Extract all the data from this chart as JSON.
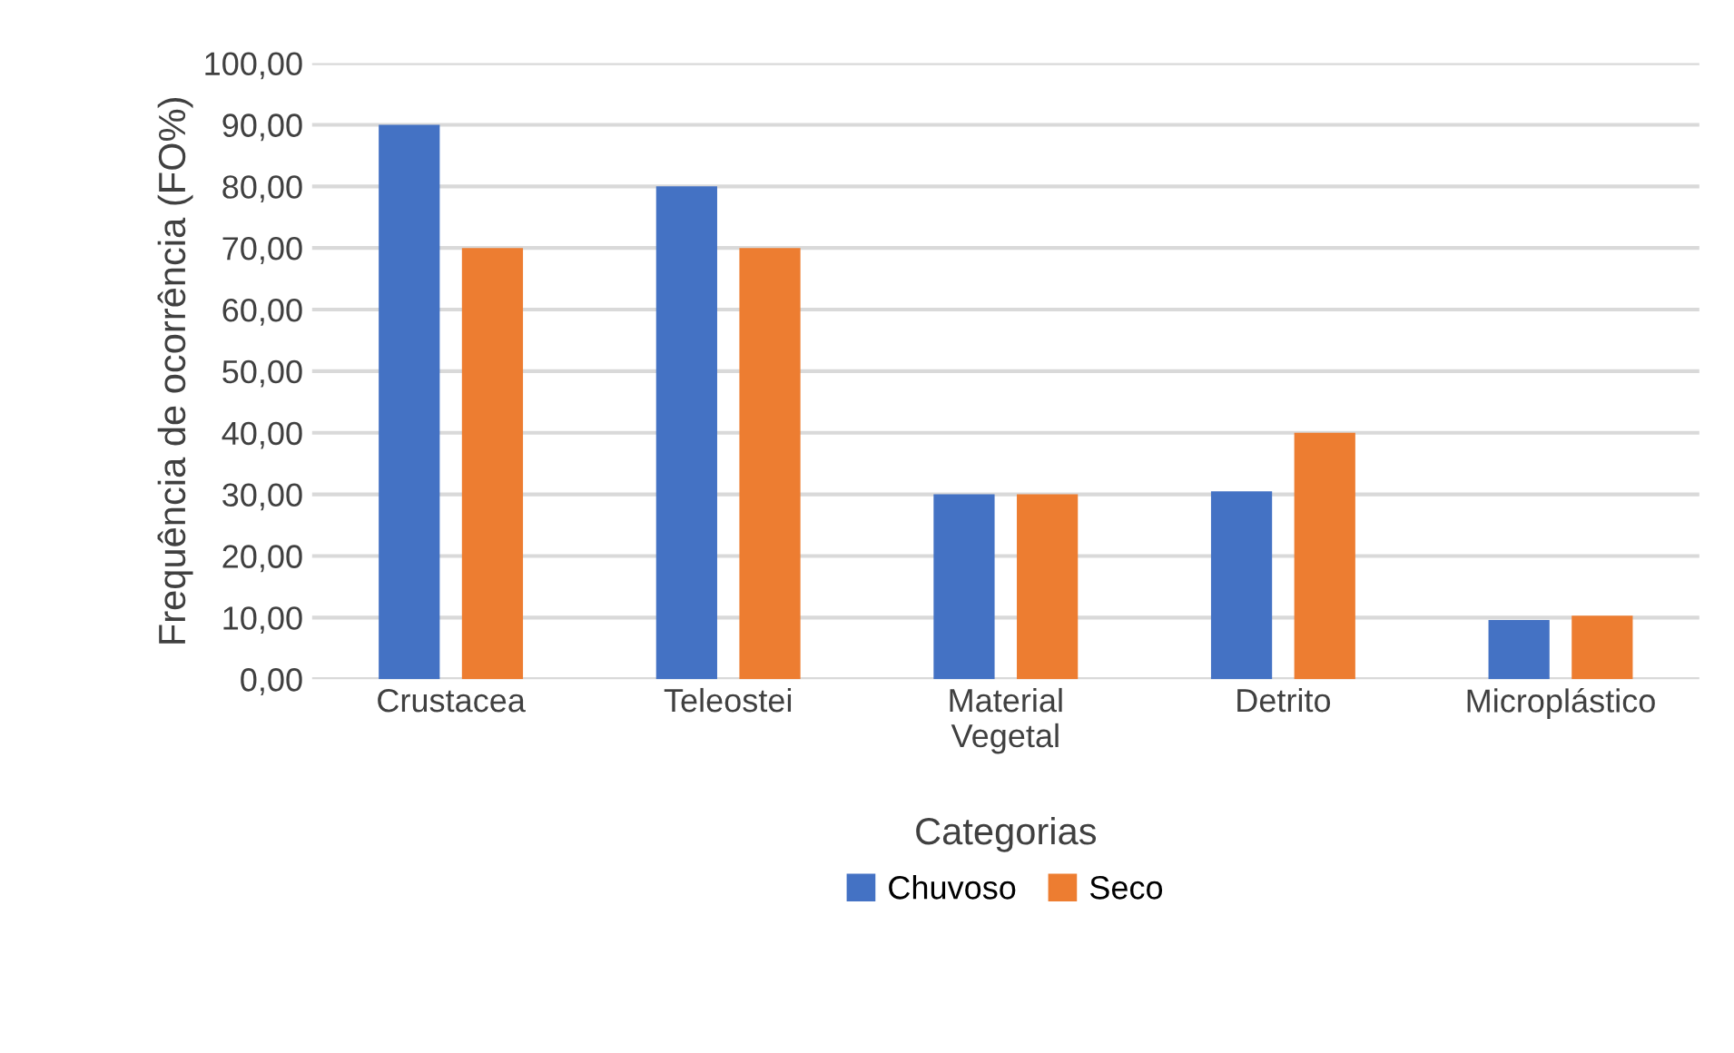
{
  "chart_data": {
    "type": "bar",
    "xlabel": "Categorias",
    "ylabel": "Frequência de ocorrência (FO%)",
    "categories": [
      "Crustacea",
      "Teleostei",
      "Material\nVegetal",
      "Detrito",
      "Microplástico"
    ],
    "series": [
      {
        "name": "Chuvoso",
        "color": "#4472c4",
        "values": [
          90,
          80,
          30,
          30.5,
          9.6
        ]
      },
      {
        "name": "Seco",
        "color": "#ed7d31",
        "values": [
          70,
          70,
          30,
          40,
          10.3
        ]
      }
    ],
    "ylim": [
      0,
      100
    ],
    "yticks": [
      {
        "value": 0,
        "label": "0,00"
      },
      {
        "value": 10,
        "label": "10,00"
      },
      {
        "value": 20,
        "label": "20,00"
      },
      {
        "value": 30,
        "label": "30,00"
      },
      {
        "value": 40,
        "label": "40,00"
      },
      {
        "value": 50,
        "label": "50,00"
      },
      {
        "value": 60,
        "label": "60,00"
      },
      {
        "value": 70,
        "label": "70,00"
      },
      {
        "value": 80,
        "label": "80,00"
      },
      {
        "value": 90,
        "label": "90,00"
      },
      {
        "value": 100,
        "label": "100,00"
      }
    ],
    "grid": "y",
    "legend": "bottom"
  }
}
